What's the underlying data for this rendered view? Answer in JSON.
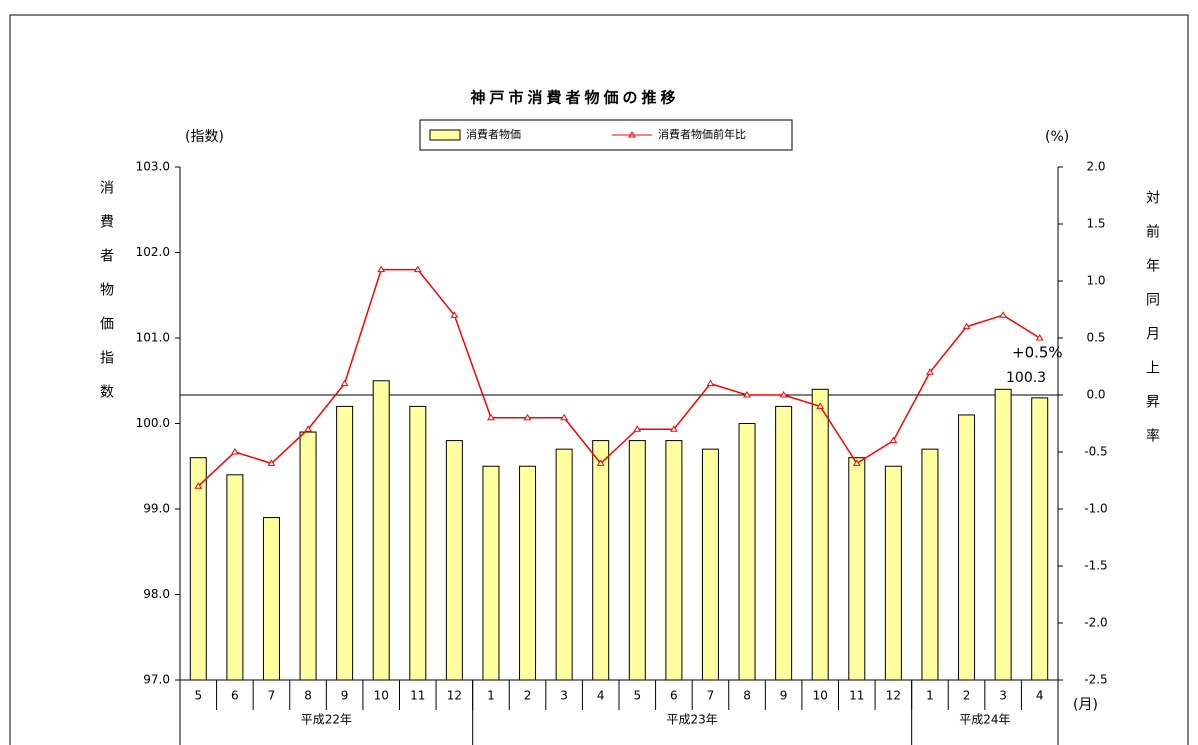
{
  "chart_data": {
    "type": "bar-line",
    "title": "神戸市消費者物価の推移",
    "y_axis_unit": "(指数)",
    "y2_axis_unit": "(%)",
    "x_axis_unit": "(月)",
    "y_axis_title": "消費者物価指数",
    "y2_axis_title": "対前年同月上昇率",
    "categories": [
      "5",
      "6",
      "7",
      "8",
      "9",
      "10",
      "11",
      "12",
      "1",
      "2",
      "3",
      "4",
      "5",
      "6",
      "7",
      "8",
      "9",
      "10",
      "11",
      "12",
      "1",
      "2",
      "3",
      "4"
    ],
    "groups": [
      {
        "label": "平成22年",
        "count": 8
      },
      {
        "label": "平成23年",
        "count": 12
      },
      {
        "label": "平成24年",
        "count": 4
      }
    ],
    "series": [
      {
        "name": "消費者物価",
        "color": "#ffffa0",
        "kind": "bar",
        "values": [
          99.6,
          99.4,
          98.9,
          99.9,
          100.2,
          100.5,
          100.2,
          99.8,
          99.5,
          99.5,
          99.7,
          99.8,
          99.8,
          99.8,
          99.7,
          100.0,
          100.2,
          100.4,
          99.6,
          99.5,
          99.7,
          100.1,
          100.4,
          100.3
        ]
      },
      {
        "name": "消費者物価前年比",
        "color": "#ff0000",
        "kind": "line",
        "axis": "y2",
        "values": [
          -0.8,
          -0.5,
          -0.6,
          -0.3,
          0.1,
          1.1,
          1.1,
          0.7,
          -0.2,
          -0.2,
          -0.2,
          -0.6,
          -0.3,
          -0.3,
          0.1,
          0.0,
          0.0,
          -0.1,
          -0.6,
          -0.4,
          0.2,
          0.6,
          0.7,
          0.5
        ]
      }
    ],
    "ylim": [
      97,
      103
    ],
    "yticks": [
      {
        "value": 97,
        "label": "97.0"
      },
      {
        "value": 98,
        "label": "98.0"
      },
      {
        "value": 99,
        "label": "99.0"
      },
      {
        "value": 100,
        "label": "100.0"
      },
      {
        "value": 101,
        "label": "101.0"
      },
      {
        "value": 102,
        "label": "102.0"
      },
      {
        "value": 103,
        "label": "103.0"
      }
    ],
    "y2lim": [
      -2.5,
      2.0
    ],
    "y2ticks": [
      -2.5,
      {
        "value": -2,
        "label": "-2.0"
      },
      -1.5,
      {
        "value": -1,
        "label": "-1.0"
      },
      -0.5,
      {
        "value": 0,
        "label": "0.0"
      },
      0.5,
      {
        "value": 1,
        "label": "1.0"
      },
      1.5,
      {
        "value": 2,
        "label": "2.0"
      }
    ],
    "y2_reference_line": 0,
    "annotations": [
      "+0.5%",
      "100.3"
    ]
  }
}
